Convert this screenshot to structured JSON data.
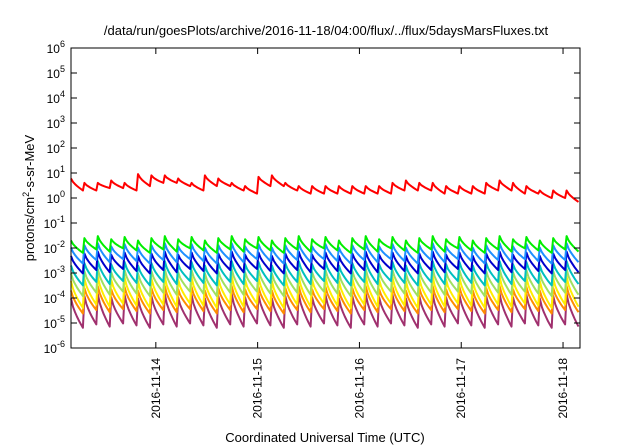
{
  "chart_data": {
    "type": "line",
    "title": "/data/run/goesPlots/archive/2016-11-18/04:00/flux/../flux/5daysMarsFluxes.txt",
    "xlabel": "Coordinated Universal Time (UTC)",
    "ylabel": "protons/cm²-s-sr-MeV",
    "ylabel_parts": {
      "pre": "protons/cm",
      "sup": "2",
      "post": "-s-sr-MeV"
    },
    "log_y": true,
    "ylim": [
      1e-06,
      1000000.0
    ],
    "y_ticks": [
      {
        "base": "10",
        "exp": "6",
        "value": 1000000.0
      },
      {
        "base": "10",
        "exp": "5",
        "value": 100000.0
      },
      {
        "base": "10",
        "exp": "4",
        "value": 10000.0
      },
      {
        "base": "10",
        "exp": "3",
        "value": 1000.0
      },
      {
        "base": "10",
        "exp": "2",
        "value": 100.0
      },
      {
        "base": "10",
        "exp": "1",
        "value": 10.0
      },
      {
        "base": "10",
        "exp": "0",
        "value": 1.0
      },
      {
        "base": "10",
        "exp": "-1",
        "value": 0.1
      },
      {
        "base": "10",
        "exp": "-2",
        "value": 0.01
      },
      {
        "base": "10",
        "exp": "-3",
        "value": 0.001
      },
      {
        "base": "10",
        "exp": "-4",
        "value": 0.0001
      },
      {
        "base": "10",
        "exp": "-5",
        "value": 1e-05
      },
      {
        "base": "10",
        "exp": "-6",
        "value": 1e-06
      }
    ],
    "xlim": [
      "2016-11-13T04:00",
      "2016-11-18T04:00"
    ],
    "x_ticks": [
      "2016-11-14",
      "2016-11-15",
      "2016-11-16",
      "2016-11-17",
      "2016-11-18"
    ],
    "grid": false,
    "legend": "none",
    "series": [
      {
        "color": "#ff0000",
        "peaks": [
          6,
          4,
          4,
          5,
          4,
          9,
          8,
          8,
          6,
          4,
          8,
          6,
          4,
          3,
          7,
          8,
          4,
          3,
          3,
          3,
          3,
          3,
          3,
          3,
          4,
          5,
          4,
          4,
          3,
          3,
          3,
          4,
          5,
          4,
          3,
          2,
          2,
          2,
          3
        ],
        "lows": [
          2,
          2,
          2.5,
          2.5,
          2,
          3,
          4,
          4,
          3,
          2,
          3,
          3,
          2,
          1.5,
          3,
          3,
          2,
          1.5,
          1.5,
          1.5,
          1.5,
          1.5,
          1.5,
          1.5,
          2,
          2,
          2,
          1.5,
          1.5,
          1.5,
          1.5,
          2,
          2,
          1.5,
          1.5,
          1,
          1,
          0.7,
          0.6
        ]
      },
      {
        "color": "#00ee00",
        "peak": 0.025,
        "low": 0.008
      },
      {
        "color": "#1e90ff",
        "peak": 0.013,
        "low": 0.003
      },
      {
        "color": "#0000cd",
        "peak": 0.006,
        "low": 0.0012
      },
      {
        "color": "#00c0c0",
        "peak": 0.0025,
        "low": 0.0004
      },
      {
        "color": "#a0e060",
        "peak": 0.0012,
        "low": 0.00015
      },
      {
        "color": "#ffee00",
        "peak": 0.0006,
        "low": 5e-05
      },
      {
        "color": "#ff8c00",
        "peak": 0.00025,
        "low": 3e-05
      },
      {
        "color": "#a0306e",
        "peak": 0.00012,
        "low": 8e-06
      }
    ],
    "cycles": 38
  }
}
